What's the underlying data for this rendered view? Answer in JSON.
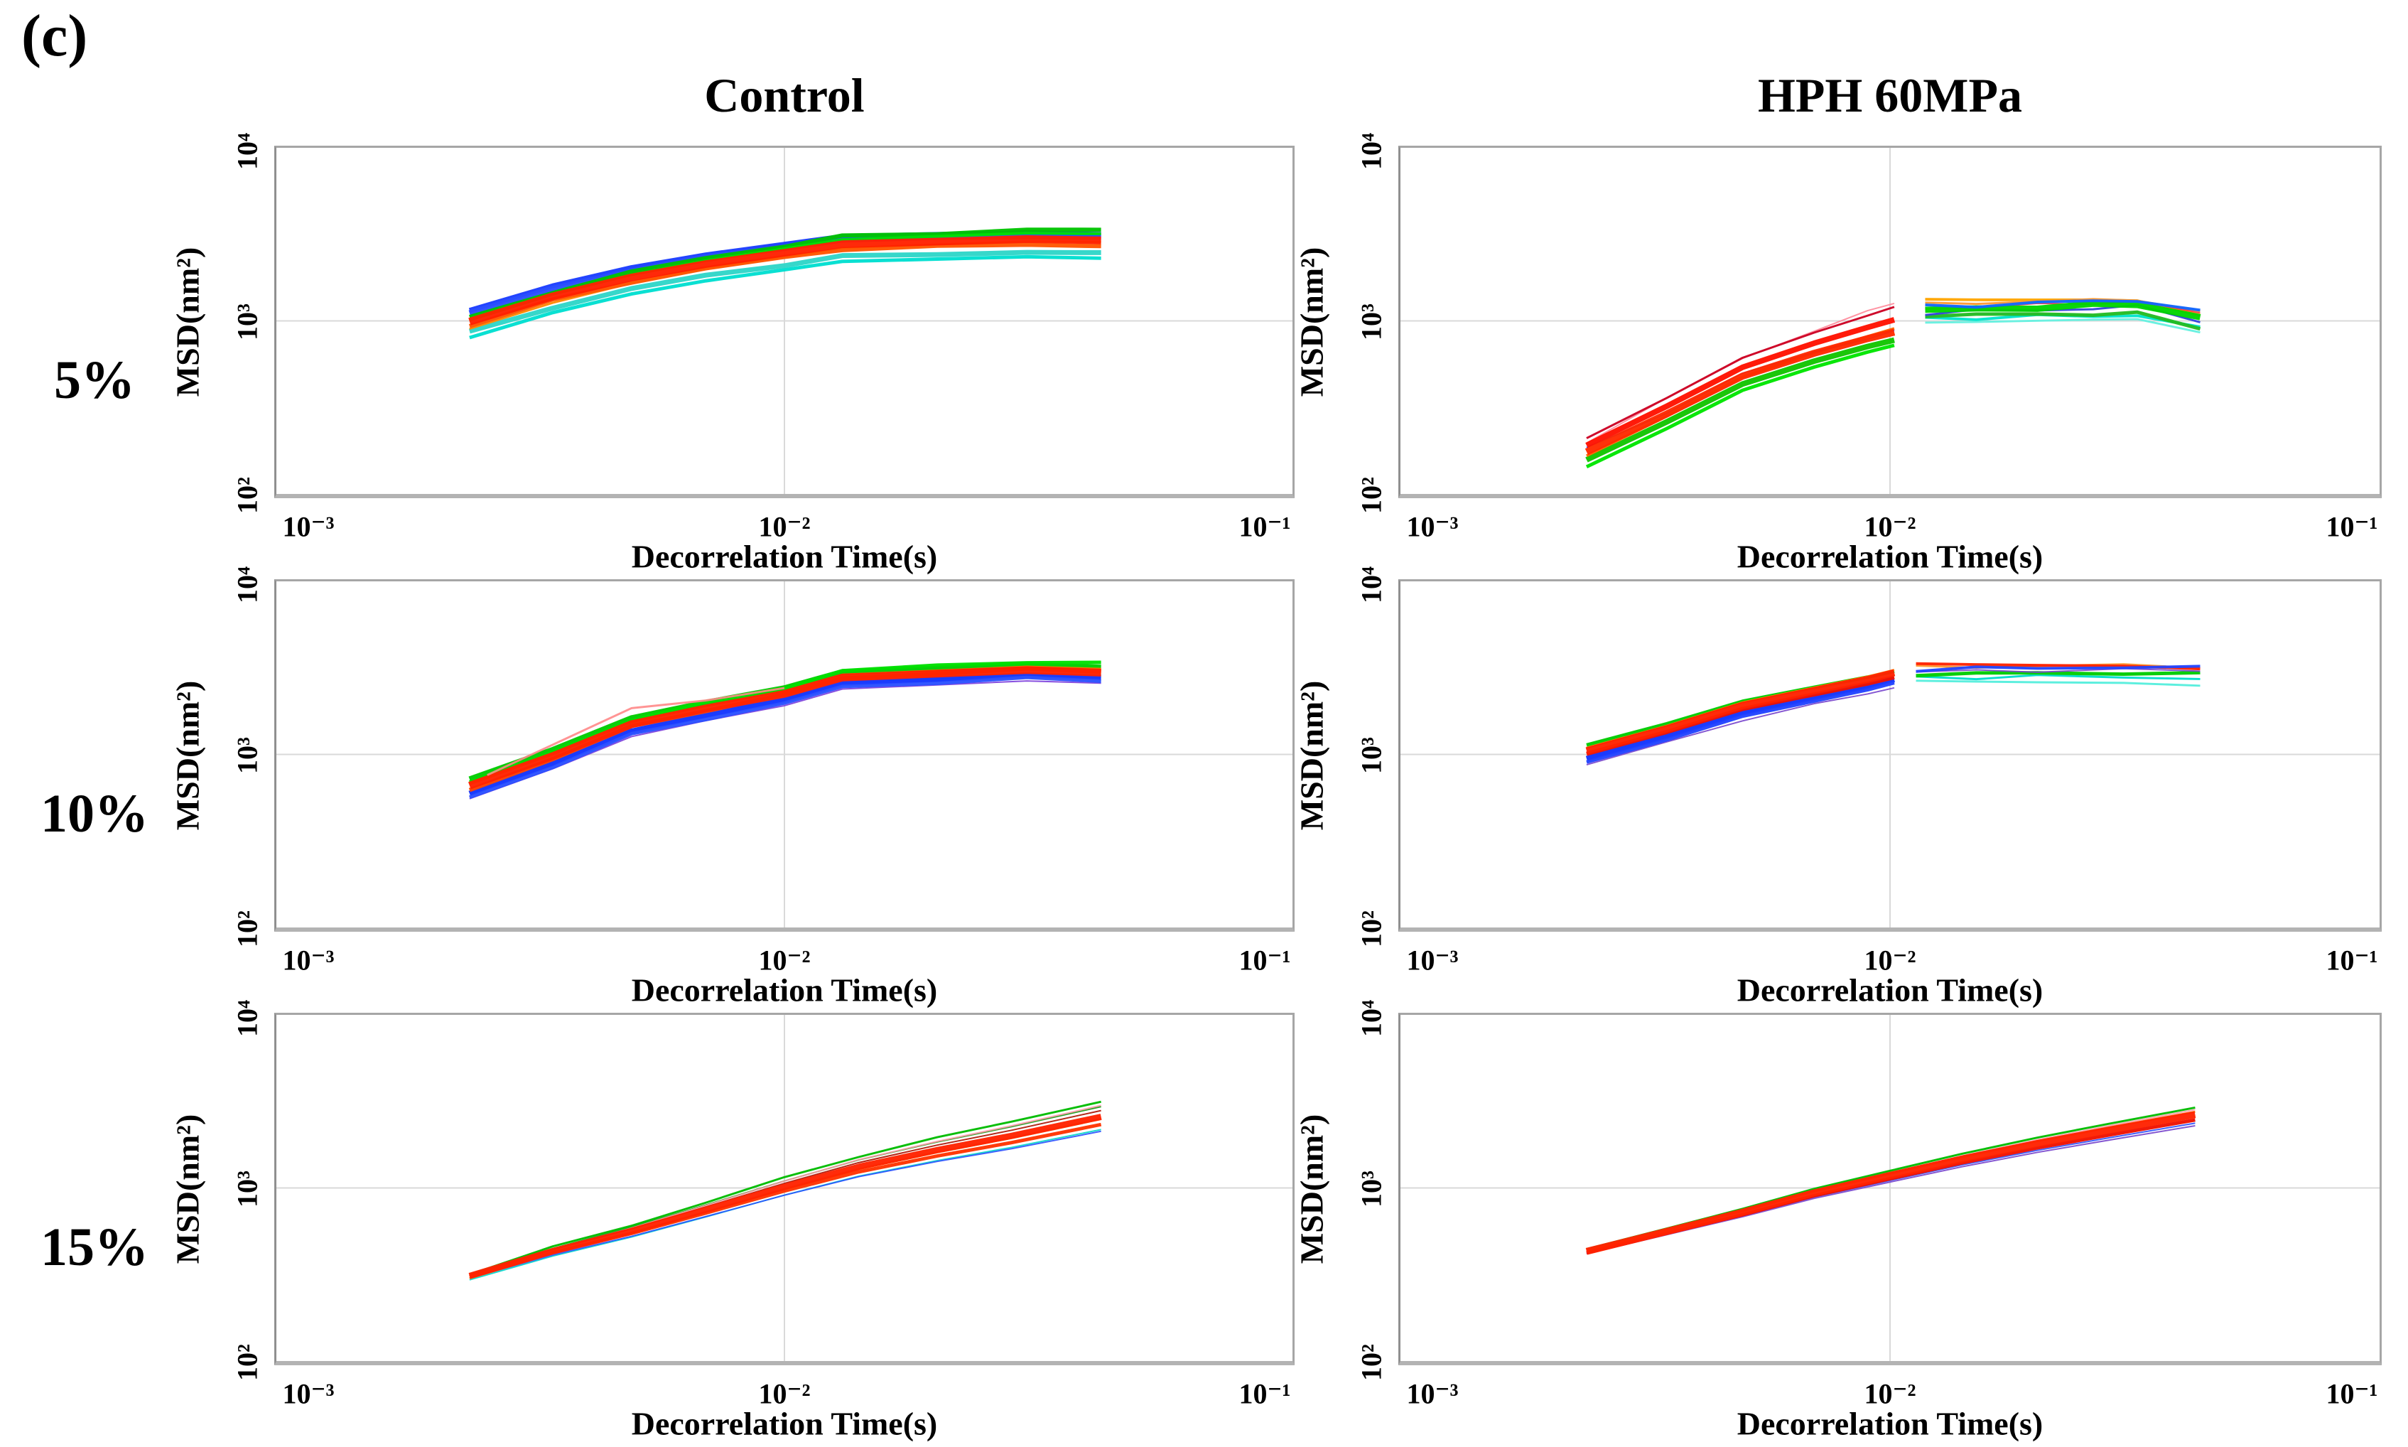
{
  "figure": {
    "panel_label": "(c)"
  },
  "columns": [
    {
      "title": "Control"
    },
    {
      "title": "HPH 60MPa"
    }
  ],
  "rows": [
    {
      "label": "5%"
    },
    {
      "label": "10%"
    },
    {
      "label": "15%"
    }
  ],
  "axes": {
    "xlabel": "Decorrelation Time(s)",
    "ylabel": "MSD(nm²)",
    "xticks": [
      "10⁻³",
      "10⁻²",
      "10⁻¹"
    ],
    "yticks": [
      "10⁴",
      "10³",
      "10²"
    ],
    "xlim": [
      0.001,
      0.1
    ],
    "ylim": [
      100,
      10000
    ],
    "scale": "log-log",
    "xgridline_at": 0.01,
    "ygridline_at": 1000,
    "grid_color": "#d9d9d9",
    "frame_color": "#a6a6a6"
  },
  "chart_data": [
    {
      "type": "line",
      "column": "Control",
      "row": "5%",
      "bundles": [
        {
          "x": [
            0.0024,
            0.0035,
            0.005,
            0.007,
            0.01,
            0.013,
            0.02,
            0.03,
            0.042
          ],
          "y": [
            1000,
            1400,
            1800,
            2150,
            2500,
            2800,
            2900,
            3000,
            2950
          ],
          "strands": [
            {
              "c": "#00dfd0",
              "w": 5,
              "o": 0.8,
              "oe": 0.78
            },
            {
              "c": "#2fd5c8",
              "w": 7,
              "o": 0.86,
              "oe": 0.83,
              "wig": 0.006
            },
            {
              "c": "#ff8800",
              "w": 3,
              "o": 0.9,
              "oe": 0.97
            },
            {
              "c": "#1a3cff",
              "w": 7,
              "o": 1.15,
              "oe": 1.07
            },
            {
              "c": "#2b50ff",
              "w": 9,
              "o": 1.1,
              "oe": 1.03,
              "wig": 0.005
            },
            {
              "c": "#00c400",
              "w": 6,
              "o": 1.04,
              "oe": 1.13,
              "wig": 0.007
            },
            {
              "c": "#00e000",
              "w": 4,
              "o": 1.01,
              "oe": 1.08
            },
            {
              "c": "#ff5500",
              "w": 6,
              "o": 0.94,
              "oe": 0.92,
              "wig": 0.006
            },
            {
              "c": "#ff2000",
              "w": 11,
              "o": 0.99,
              "oe": 0.99
            }
          ]
        }
      ]
    },
    {
      "type": "line",
      "column": "HPH 60MPa",
      "row": "5%",
      "bundles": [
        {
          "x": [
            0.0024,
            0.0035,
            0.005,
            0.007,
            0.009,
            0.0102
          ],
          "y": [
            175,
            290,
            480,
            650,
            790,
            860
          ],
          "strands": [
            {
              "c": "#00e500",
              "w": 5,
              "o": 0.82,
              "oe": 0.84
            },
            {
              "c": "#11c400",
              "w": 8,
              "o": 0.9,
              "oe": 0.9
            },
            {
              "c": "#ff6600",
              "w": 4,
              "o": 0.95,
              "oe": 1.05
            },
            {
              "c": "#ff8899",
              "w": 2,
              "o": 1.15,
              "oe": 1.5,
              "wig": 0.01
            },
            {
              "c": "#cc0022",
              "w": 3,
              "o": 1.2,
              "oe": 1.4
            },
            {
              "c": "#2222ee",
              "w": 2,
              "o": 1.04,
              "oe": 1.0,
              "wig": 0.01
            },
            {
              "c": "#ff1100",
              "w": 8,
              "o": 1.09,
              "oe": 1.18
            },
            {
              "c": "#ff2a00",
              "w": 10,
              "o": 1.0,
              "oe": 1.0
            }
          ]
        },
        {
          "x": [
            0.0118,
            0.015,
            0.02,
            0.026,
            0.032,
            0.043
          ],
          "y": [
            1150,
            1180,
            1220,
            1260,
            1290,
            1100
          ],
          "strands": [
            {
              "c": "#66f0e0",
              "w": 3,
              "o": 0.85,
              "oe": 0.78
            },
            {
              "c": "#00e5cc",
              "w": 4,
              "o": 0.9,
              "oe": 0.82,
              "wig": 0.012
            },
            {
              "c": "#22bb22",
              "w": 5,
              "o": 0.94,
              "oe": 0.83,
              "wig": 0.01
            },
            {
              "c": "#ffa500",
              "w": 4,
              "o": 1.16,
              "oe": 0.98
            },
            {
              "c": "#ff9933",
              "w": 3,
              "o": 1.09,
              "oe": 1.02,
              "wig": 0.008
            },
            {
              "c": "#ff3333",
              "w": 2,
              "o": 1.02,
              "oe": 1.0,
              "wig": 0.01
            },
            {
              "c": "#3344dd",
              "w": 3,
              "o": 0.97,
              "oe": 0.92,
              "wig": 0.014
            },
            {
              "c": "#00d400",
              "w": 9,
              "o": 1.0,
              "oe": 0.96,
              "wig": 0.01
            },
            {
              "c": "#1166ff",
              "w": 4,
              "o": 1.05,
              "oe": 1.02,
              "wig": 0.012
            }
          ]
        }
      ]
    },
    {
      "type": "line",
      "column": "Control",
      "row": "10%",
      "bundles": [
        {
          "x": [
            0.0024,
            0.0035,
            0.005,
            0.007,
            0.01,
            0.013,
            0.02,
            0.03,
            0.042
          ],
          "y": [
            660,
            980,
            1500,
            1850,
            2250,
            2800,
            2950,
            3100,
            3000
          ],
          "strands": [
            {
              "c": "#7a3cdc",
              "w": 2,
              "o": 0.84,
              "oe": 0.86
            },
            {
              "c": "#1133ff",
              "w": 8,
              "o": 0.9,
              "oe": 0.93
            },
            {
              "c": "#2b50ff",
              "w": 5,
              "o": 0.86,
              "oe": 0.89,
              "wig": 0.006
            },
            {
              "c": "#00cc00",
              "w": 8,
              "o": 1.09,
              "oe": 1.06
            },
            {
              "c": "#00e000",
              "w": 5,
              "o": 1.04,
              "oe": 1.12,
              "wig": 0.007
            },
            {
              "c": "#ff7700",
              "w": 3,
              "o": 1.02,
              "oe": 1.04
            },
            {
              "c": "#ff4400",
              "w": 6,
              "o": 0.95,
              "oe": 1.01,
              "wig": 0.005
            },
            {
              "c": "#ff2200",
              "w": 11,
              "o": 1.0,
              "oe": 0.99
            }
          ]
        }
      ],
      "lines": [
        {
          "c": "#ff8888",
          "w": 3,
          "points": [
            [
              0.0026,
              760
            ],
            [
              0.005,
              1850
            ],
            [
              0.007,
              2050
            ],
            [
              0.01,
              2420
            ]
          ]
        }
      ]
    },
    {
      "type": "line",
      "column": "HPH 60MPa",
      "row": "10%",
      "bundles": [
        {
          "x": [
            0.0024,
            0.0035,
            0.005,
            0.007,
            0.009,
            0.0102
          ],
          "y": [
            1050,
            1400,
            1900,
            2300,
            2650,
            2880
          ],
          "strands": [
            {
              "c": "#7744cc",
              "w": 2,
              "o": 0.83,
              "oe": 0.85,
              "wig": 0.008
            },
            {
              "c": "#1133ff",
              "w": 8,
              "o": 0.9,
              "oe": 0.94
            },
            {
              "c": "#2244ff",
              "w": 5,
              "o": 0.86,
              "oe": 0.9
            },
            {
              "c": "#00cc00",
              "w": 5,
              "o": 1.08,
              "oe": 1.05
            },
            {
              "c": "#ff8800",
              "w": 3,
              "o": 1.04,
              "oe": 1.07
            },
            {
              "c": "#ee1100",
              "w": 6,
              "o": 0.96,
              "oe": 0.97
            },
            {
              "c": "#ff2200",
              "w": 10,
              "o": 1.0,
              "oe": 1.03
            }
          ]
        },
        {
          "x": [
            0.0113,
            0.015,
            0.02,
            0.03,
            0.043
          ],
          "y": [
            3100,
            3120,
            3150,
            3180,
            3120
          ],
          "strands": [
            {
              "c": "#55eedd",
              "w": 3,
              "o": 0.86,
              "oe": 0.8
            },
            {
              "c": "#00ddcc",
              "w": 3,
              "o": 0.9,
              "oe": 0.88,
              "wig": 0.012
            },
            {
              "c": "#00cc00",
              "w": 5,
              "o": 0.94,
              "oe": 0.93,
              "wig": 0.01
            },
            {
              "c": "#7744cc",
              "w": 2,
              "o": 0.97,
              "oe": 0.97,
              "wig": 0.01
            },
            {
              "c": "#ff9933",
              "w": 3,
              "o": 1.03,
              "oe": 1.03,
              "wig": 0.009
            },
            {
              "c": "#ff2200",
              "w": 4,
              "o": 1.08,
              "oe": 1.0
            },
            {
              "c": "#2244ff",
              "w": 4,
              "o": 1.0,
              "oe": 1.01,
              "wig": 0.012
            }
          ]
        }
      ]
    },
    {
      "type": "line",
      "column": "Control",
      "row": "15%",
      "bundles": [
        {
          "x": [
            0.0024,
            0.0035,
            0.005,
            0.007,
            0.01,
            0.014,
            0.02,
            0.028,
            0.042
          ],
          "y": [
            310,
            430,
            560,
            740,
            1000,
            1300,
            1620,
            1950,
            2500
          ],
          "strands": [
            {
              "c": "#00d5c8",
              "w": 2,
              "o": 0.95,
              "oe": 0.87
            },
            {
              "c": "#2b50ff",
              "w": 2,
              "o": 0.97,
              "oe": 0.85
            },
            {
              "c": "#119911",
              "w": 2,
              "o": 1.02,
              "oe": 1.18
            },
            {
              "c": "#00bb00",
              "w": 3,
              "o": 1.03,
              "oe": 1.27,
              "wig": 0.005
            },
            {
              "c": "#ff99aa",
              "w": 2,
              "o": 1.0,
              "oe": 1.2
            },
            {
              "c": "#aa1100",
              "w": 2,
              "o": 1.01,
              "oe": 1.12
            },
            {
              "c": "#ff7700",
              "w": 3,
              "o": 0.97,
              "oe": 1.0
            },
            {
              "c": "#ff3300",
              "w": 5,
              "o": 0.99,
              "oe": 0.93
            },
            {
              "c": "#ff2200",
              "w": 9,
              "o": 1.0,
              "oe": 1.03
            }
          ]
        }
      ]
    },
    {
      "type": "line",
      "column": "HPH 60MPa",
      "row": "15%",
      "bundles": [
        {
          "x": [
            0.0024,
            0.0035,
            0.005,
            0.007,
            0.01,
            0.014,
            0.02,
            0.028,
            0.042
          ],
          "y": [
            430,
            560,
            720,
            930,
            1170,
            1450,
            1780,
            2120,
            2600
          ],
          "strands": [
            {
              "c": "#7744cc",
              "w": 2,
              "o": 0.97,
              "oe": 0.88
            },
            {
              "c": "#2b50ff",
              "w": 2,
              "o": 0.98,
              "oe": 0.91
            },
            {
              "c": "#00bb00",
              "w": 3,
              "o": 1.03,
              "oe": 1.12
            },
            {
              "c": "#ff99aa",
              "w": 2,
              "o": 1.0,
              "oe": 1.09
            },
            {
              "c": "#ff7700",
              "w": 3,
              "o": 1.01,
              "oe": 1.06
            },
            {
              "c": "#ee1100",
              "w": 5,
              "o": 0.98,
              "oe": 0.95
            },
            {
              "c": "#ff2200",
              "w": 10,
              "o": 1.0,
              "oe": 1.02
            }
          ]
        }
      ]
    }
  ]
}
